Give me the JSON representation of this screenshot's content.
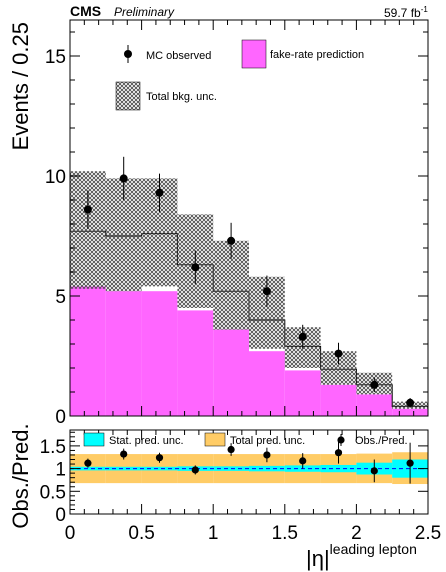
{
  "header": {
    "experiment": "CMS",
    "status": "Preliminary",
    "lumi": "59.7 fb",
    "lumi_sup": "-1"
  },
  "chart_data": [
    {
      "type": "bar",
      "panel": "main",
      "ylabel": "Events / 0.25",
      "ylim": [
        0,
        16.5
      ],
      "xlim": [
        0,
        2.5
      ],
      "yticks": [
        0,
        5,
        10,
        15
      ],
      "bin_edges": [
        0,
        0.25,
        0.5,
        0.75,
        1.0,
        1.25,
        1.5,
        1.75,
        2.0,
        2.25,
        2.5
      ],
      "legend": {
        "mc": "MC observed",
        "fake": "fake-rate prediction",
        "unc": "Total bkg. unc."
      },
      "colors": {
        "fake": "#ff66ff",
        "hatch": "#444444",
        "points": "#000000"
      },
      "series": [
        {
          "name": "fake-rate prediction",
          "values": [
            5.4,
            5.2,
            5.2,
            4.4,
            3.6,
            2.7,
            1.9,
            1.3,
            0.9,
            0.3
          ]
        },
        {
          "name": "total prediction",
          "values": [
            7.7,
            7.5,
            7.6,
            6.3,
            5.2,
            4.0,
            2.9,
            1.95,
            1.3,
            0.4
          ]
        },
        {
          "name": "unc_low",
          "values": [
            5.3,
            5.2,
            5.4,
            4.5,
            3.6,
            2.8,
            2.0,
            1.3,
            0.9,
            0.3
          ]
        },
        {
          "name": "unc_high",
          "values": [
            10.2,
            9.9,
            9.9,
            8.4,
            7.3,
            5.8,
            3.7,
            2.7,
            1.8,
            0.6
          ]
        },
        {
          "name": "MC observed",
          "values": [
            8.6,
            9.9,
            9.3,
            6.2,
            7.3,
            5.2,
            3.3,
            2.6,
            1.3,
            0.55
          ],
          "errors": [
            0.8,
            0.9,
            0.8,
            0.7,
            0.75,
            0.65,
            0.5,
            0.45,
            0.3,
            0.2
          ]
        }
      ]
    },
    {
      "type": "bar",
      "panel": "ratio",
      "xlabel": "|η|",
      "xlabel_sup": "leading lepton",
      "ylabel": "Obs./Pred.",
      "ylim": [
        0,
        1.85
      ],
      "xlim": [
        0,
        2.5
      ],
      "yticks": [
        0,
        0.5,
        1,
        1.5
      ],
      "xticks": [
        0,
        0.5,
        1,
        1.5,
        2,
        2.5
      ],
      "reference_line": 1.0,
      "legend": {
        "stat": "Stat. pred. unc.",
        "total": "Total pred. unc.",
        "obs": "Obs./Pred."
      },
      "colors": {
        "stat": "#00ffff",
        "total": "#ffcc66",
        "line": "#0000ff"
      },
      "series": [
        {
          "name": "Total pred. unc.",
          "low": [
            0.68,
            0.68,
            0.68,
            0.68,
            0.68,
            0.68,
            0.68,
            0.68,
            0.68,
            0.66
          ],
          "high": [
            1.32,
            1.32,
            1.32,
            1.32,
            1.32,
            1.32,
            1.32,
            1.32,
            1.33,
            1.36
          ]
        },
        {
          "name": "Stat. pred. unc.",
          "low": [
            0.96,
            0.96,
            0.96,
            0.95,
            0.95,
            0.94,
            0.93,
            0.92,
            0.87,
            0.8
          ],
          "high": [
            1.04,
            1.04,
            1.04,
            1.05,
            1.05,
            1.06,
            1.07,
            1.08,
            1.13,
            1.2
          ]
        },
        {
          "name": "Obs./Pred.",
          "values": [
            1.12,
            1.32,
            1.24,
            0.97,
            1.42,
            1.3,
            1.17,
            1.35,
            0.95,
            1.12
          ],
          "errors": [
            0.1,
            0.12,
            0.11,
            0.1,
            0.14,
            0.16,
            0.17,
            0.24,
            0.25,
            0.45
          ]
        }
      ]
    }
  ]
}
